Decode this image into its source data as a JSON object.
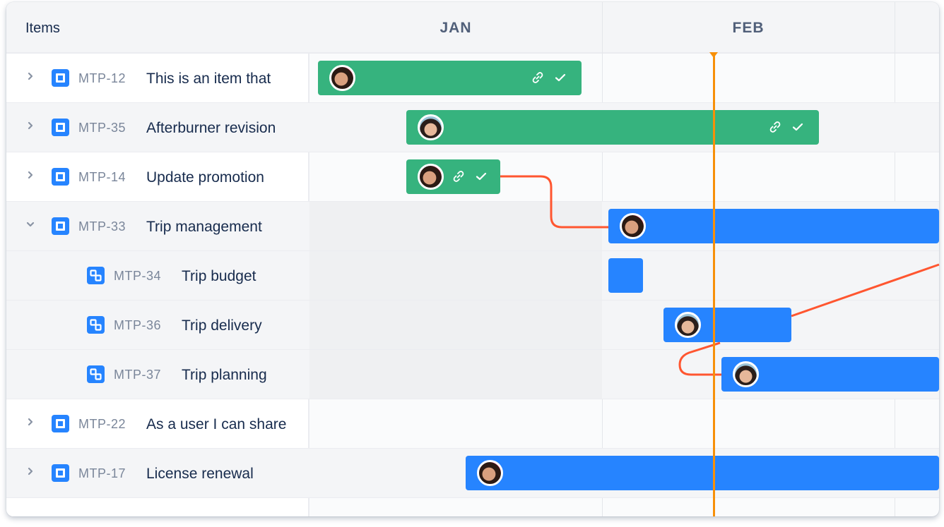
{
  "header": {
    "items_label": "Items",
    "months": [
      "JAN",
      "FEB"
    ]
  },
  "colors": {
    "green": "#36b37e",
    "blue": "#2684ff",
    "today": "#f79009",
    "dependency": "#ff5630"
  },
  "rows": [
    {
      "key": "MTP-12",
      "title": "This is an item that",
      "type": "story",
      "expand": "collapsed",
      "bar": {
        "color": "green",
        "avatar": "avatar-woman-1",
        "icons": [
          "link-icon",
          "check-icon"
        ]
      }
    },
    {
      "key": "MTP-35",
      "title": "Afterburner revision",
      "type": "story",
      "expand": "collapsed",
      "bar": {
        "color": "green",
        "avatar": "avatar-woman-2",
        "icons": [
          "link-icon",
          "check-icon"
        ]
      }
    },
    {
      "key": "MTP-14",
      "title": "Update promotion",
      "type": "story",
      "expand": "collapsed",
      "bar": {
        "color": "green",
        "avatar": "avatar-woman-1",
        "icons": [
          "link-icon",
          "check-icon"
        ]
      }
    },
    {
      "key": "MTP-33",
      "title": "Trip management",
      "type": "story",
      "expand": "expanded",
      "bar": {
        "color": "blue",
        "avatar": "avatar-woman-1",
        "icons": []
      }
    },
    {
      "key": "MTP-34",
      "title": "Trip budget",
      "type": "subtask",
      "expand": "none",
      "bar": {
        "color": "blue",
        "avatar": null,
        "icons": []
      }
    },
    {
      "key": "MTP-36",
      "title": "Trip delivery",
      "type": "subtask",
      "expand": "none",
      "bar": {
        "color": "blue",
        "avatar": "avatar-woman-2",
        "icons": []
      }
    },
    {
      "key": "MTP-37",
      "title": "Trip planning",
      "type": "subtask",
      "expand": "none",
      "bar": {
        "color": "blue",
        "avatar": "avatar-woman-2",
        "icons": []
      }
    },
    {
      "key": "MTP-22",
      "title": "As a user I can share",
      "type": "story",
      "expand": "collapsed",
      "bar": null
    },
    {
      "key": "MTP-17",
      "title": "License renewal",
      "type": "story",
      "expand": "collapsed",
      "bar": {
        "color": "blue",
        "avatar": "avatar-woman-1",
        "icons": []
      }
    }
  ]
}
